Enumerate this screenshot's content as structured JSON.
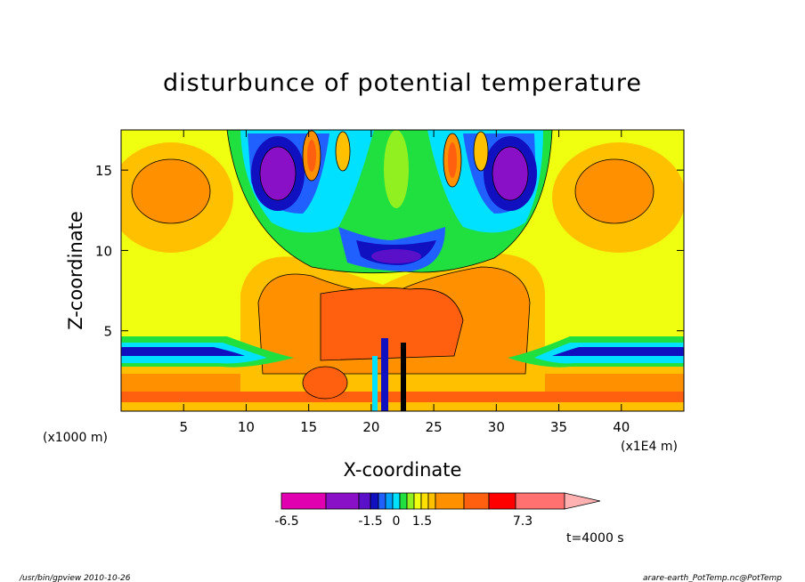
{
  "chart_data": {
    "type": "heatmap",
    "title": "disturbunce of potential temperature",
    "xlabel": "X-coordinate",
    "ylabel": "Z-coordinate",
    "x_unit_label": "(x1E4 m)",
    "y_unit_label": "(x1000 m)",
    "x_ticks": [
      5,
      10,
      15,
      20,
      25,
      30,
      35,
      40
    ],
    "y_ticks": [
      5,
      10,
      15
    ],
    "xlim": [
      0,
      45
    ],
    "ylim": [
      0,
      17.5
    ],
    "colorbar": {
      "tick_labels": [
        "-6.5",
        "-1.5",
        "0",
        "1.5",
        "7.3"
      ],
      "tick_values": [
        -6.5,
        -1.5,
        0,
        1.5,
        7.3
      ],
      "levels": [
        -6.5,
        -5.5,
        -4.5,
        -3.5,
        -3.0,
        -2.5,
        -1.5,
        -1.0,
        -0.5,
        0,
        0.5,
        1.0,
        1.5,
        2.5,
        3.5,
        4.5,
        5.5,
        7.3
      ],
      "colors": [
        "#e000b0",
        "#8a10c8",
        "#5a10c8",
        "#1010c0",
        "#2060ff",
        "#00a0ff",
        "#00e0ff",
        "#20e040",
        "#90f020",
        "#f0ff10",
        "#ffe000",
        "#ffc000",
        "#ff9000",
        "#ff6010",
        "#ff0000",
        "#ff7070",
        "#ffb0b0"
      ]
    },
    "time_label": "t=4000 s",
    "grid": false
  },
  "footer": {
    "left": "/usr/bin/gpview   2010-10-26",
    "right": "arare-earth_PotTemp.nc@PotTemp"
  },
  "colors": {
    "background": "#f0ff10",
    "frame": "#000000"
  }
}
